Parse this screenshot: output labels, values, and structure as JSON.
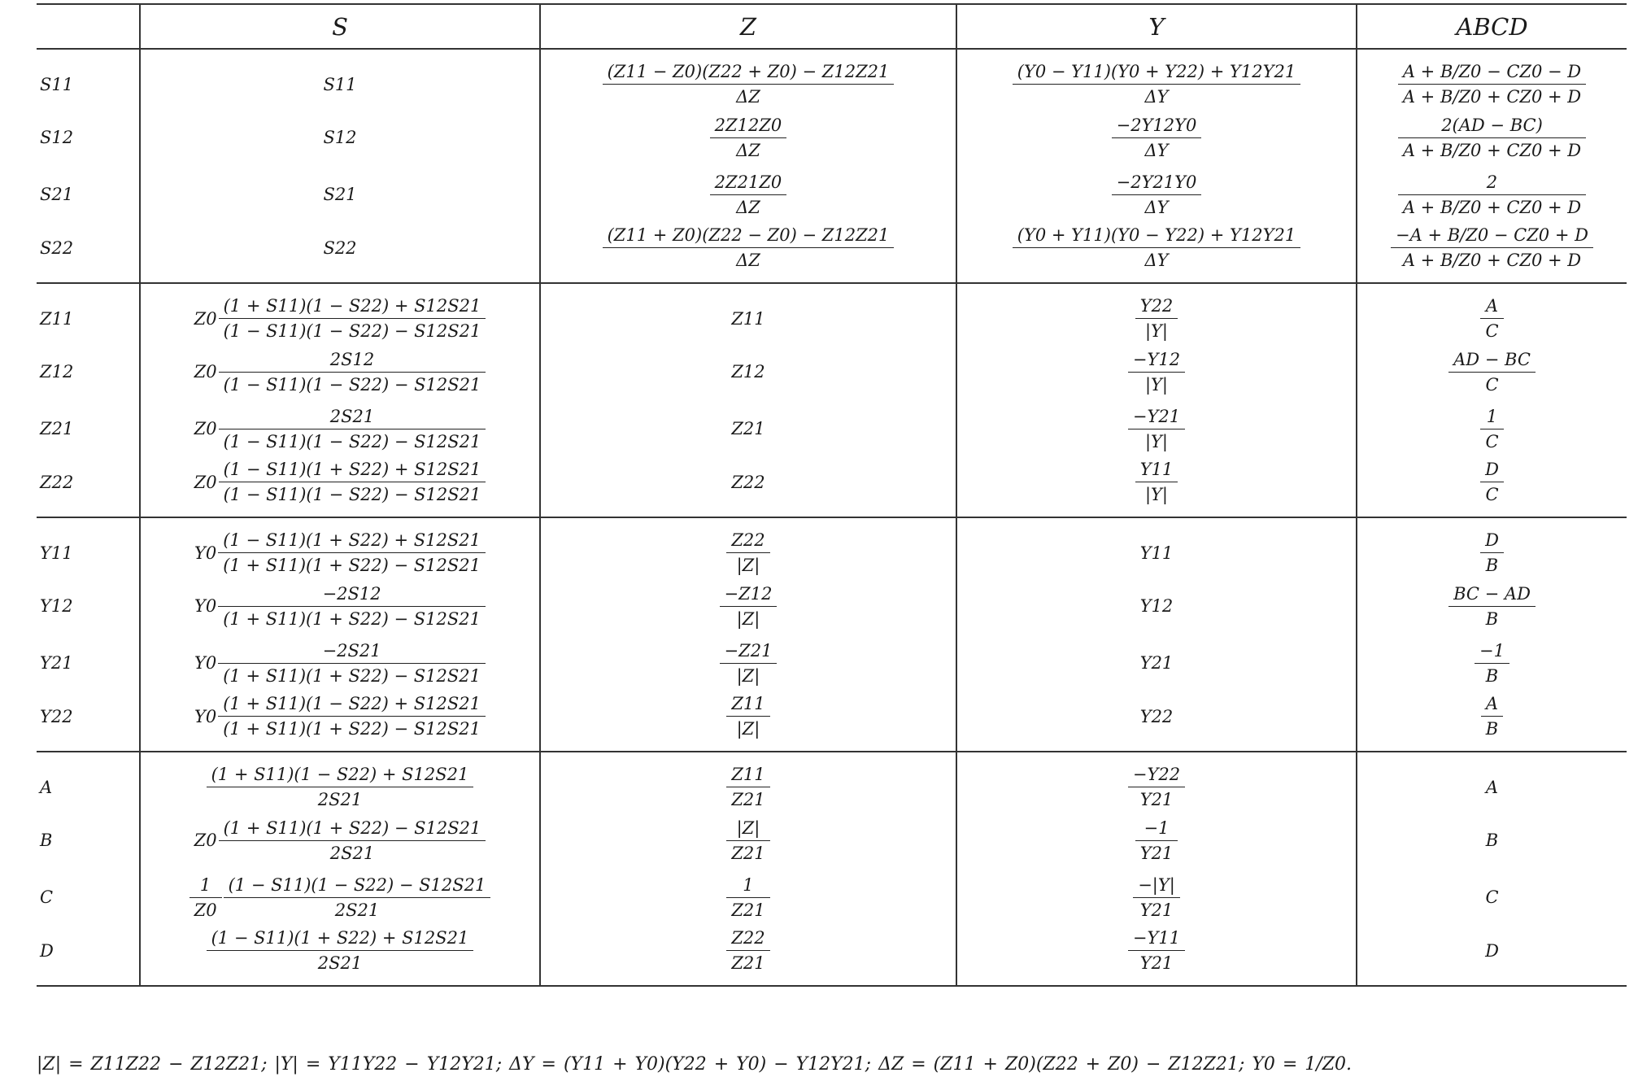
{
  "headers": [
    "",
    "S",
    "Z",
    "Y",
    "ABCD"
  ],
  "groups": [
    {
      "rows": [
        {
          "label": "S11",
          "s": {
            "e": "S11"
          },
          "z": {
            "n": "(Z11 − Z0)(Z22 + Z0) − Z12Z21",
            "d": "ΔZ"
          },
          "y": {
            "n": "(Y0 − Y11)(Y0 + Y22) + Y12Y21",
            "d": "ΔY"
          },
          "abcd": {
            "n": "A + B/Z0 − CZ0 − D",
            "d": "A + B/Z0 + CZ0 + D"
          }
        },
        {
          "label": "S12",
          "s": {
            "e": "S12"
          },
          "z": {
            "n": "2Z12Z0",
            "d": "ΔZ"
          },
          "y": {
            "n": "−2Y12Y0",
            "d": "ΔY"
          },
          "abcd": {
            "n": "2(AD − BC)",
            "d": "A + B/Z0 + CZ0 + D"
          }
        },
        {
          "label": "S21",
          "s": {
            "e": "S21"
          },
          "z": {
            "n": "2Z21Z0",
            "d": "ΔZ"
          },
          "y": {
            "n": "−2Y21Y0",
            "d": "ΔY"
          },
          "abcd": {
            "n": "2",
            "d": "A + B/Z0 + CZ0 + D"
          }
        },
        {
          "label": "S22",
          "s": {
            "e": "S22"
          },
          "z": {
            "n": "(Z11 + Z0)(Z22 − Z0) − Z12Z21",
            "d": "ΔZ"
          },
          "y": {
            "n": "(Y0 + Y11)(Y0 − Y22) + Y12Y21",
            "d": "ΔY"
          },
          "abcd": {
            "n": "−A + B/Z0 − CZ0 + D",
            "d": "A + B/Z0 + CZ0 + D"
          }
        }
      ]
    },
    {
      "rows": [
        {
          "label": "Z11",
          "s": {
            "p": "Z0",
            "n": "(1 + S11)(1 − S22) + S12S21",
            "d": "(1 − S11)(1 − S22) − S12S21"
          },
          "z": {
            "e": "Z11"
          },
          "y": {
            "n": "Y22",
            "d": "|Y|"
          },
          "abcd": {
            "n": "A",
            "d": "C"
          }
        },
        {
          "label": "Z12",
          "s": {
            "p": "Z0",
            "n": "2S12",
            "d": "(1 − S11)(1 − S22) − S12S21"
          },
          "z": {
            "e": "Z12"
          },
          "y": {
            "n": "−Y12",
            "d": "|Y|"
          },
          "abcd": {
            "n": "AD − BC",
            "d": "C"
          }
        },
        {
          "label": "Z21",
          "s": {
            "p": "Z0",
            "n": "2S21",
            "d": "(1 − S11)(1 − S22) − S12S21"
          },
          "z": {
            "e": "Z21"
          },
          "y": {
            "n": "−Y21",
            "d": "|Y|"
          },
          "abcd": {
            "n": "1",
            "d": "C"
          }
        },
        {
          "label": "Z22",
          "s": {
            "p": "Z0",
            "n": "(1 − S11)(1 + S22) + S12S21",
            "d": "(1 − S11)(1 − S22) − S12S21"
          },
          "z": {
            "e": "Z22"
          },
          "y": {
            "n": "Y11",
            "d": "|Y|"
          },
          "abcd": {
            "n": "D",
            "d": "C"
          }
        }
      ]
    },
    {
      "rows": [
        {
          "label": "Y11",
          "s": {
            "p": "Y0",
            "n": "(1 − S11)(1 + S22) + S12S21",
            "d": "(1 + S11)(1 + S22) − S12S21"
          },
          "z": {
            "n": "Z22",
            "d": "|Z|"
          },
          "y": {
            "e": "Y11"
          },
          "abcd": {
            "n": "D",
            "d": "B"
          }
        },
        {
          "label": "Y12",
          "s": {
            "p": "Y0",
            "n": "−2S12",
            "d": "(1 + S11)(1 + S22) − S12S21"
          },
          "z": {
            "n": "−Z12",
            "d": "|Z|"
          },
          "y": {
            "e": "Y12"
          },
          "abcd": {
            "n": "BC − AD",
            "d": "B"
          }
        },
        {
          "label": "Y21",
          "s": {
            "p": "Y0",
            "n": "−2S21",
            "d": "(1 + S11)(1 + S22) − S12S21"
          },
          "z": {
            "n": "−Z21",
            "d": "|Z|"
          },
          "y": {
            "e": "Y21"
          },
          "abcd": {
            "n": "−1",
            "d": "B"
          }
        },
        {
          "label": "Y22",
          "s": {
            "p": "Y0",
            "n": "(1 + S11)(1 − S22) + S12S21",
            "d": "(1 + S11)(1 + S22) − S12S21"
          },
          "z": {
            "n": "Z11",
            "d": "|Z|"
          },
          "y": {
            "e": "Y22"
          },
          "abcd": {
            "n": "A",
            "d": "B"
          }
        }
      ]
    },
    {
      "rows": [
        {
          "label": "A",
          "s": {
            "n": "(1 + S11)(1 − S22) + S12S21",
            "d": "2S21"
          },
          "z": {
            "n": "Z11",
            "d": "Z21"
          },
          "y": {
            "n": "−Y22",
            "d": "Y21"
          },
          "abcd": {
            "e": "A"
          }
        },
        {
          "label": "B",
          "s": {
            "p": "Z0",
            "n": "(1 + S11)(1 + S22) − S12S21",
            "d": "2S21"
          },
          "z": {
            "n": "|Z|",
            "d": "Z21"
          },
          "y": {
            "n": "−1",
            "d": "Y21"
          },
          "abcd": {
            "e": "B"
          }
        },
        {
          "label": "C",
          "s": {
            "pn": "1",
            "pd": "Z0",
            "n": "(1 − S11)(1 − S22) − S12S21",
            "d": "2S21"
          },
          "z": {
            "n": "1",
            "d": "Z21"
          },
          "y": {
            "n": "−|Y|",
            "d": "Y21"
          },
          "abcd": {
            "e": "C"
          }
        },
        {
          "label": "D",
          "s": {
            "n": "(1 − S11)(1 + S22) + S12S21",
            "d": "2S21"
          },
          "z": {
            "n": "Z22",
            "d": "Z21"
          },
          "y": {
            "n": "−Y11",
            "d": "Y21"
          },
          "abcd": {
            "e": "D"
          }
        }
      ]
    }
  ],
  "footnote": "|Z| = Z11Z22 − Z12Z21;     |Y| = Y11Y22 − Y12Y21;     ΔY = (Y11 + Y0)(Y22 + Y0) − Y12Y21;     ΔZ = (Z11 + Z0)(Z22 + Z0) − Z12Z21;     Y0 = 1/Z0."
}
